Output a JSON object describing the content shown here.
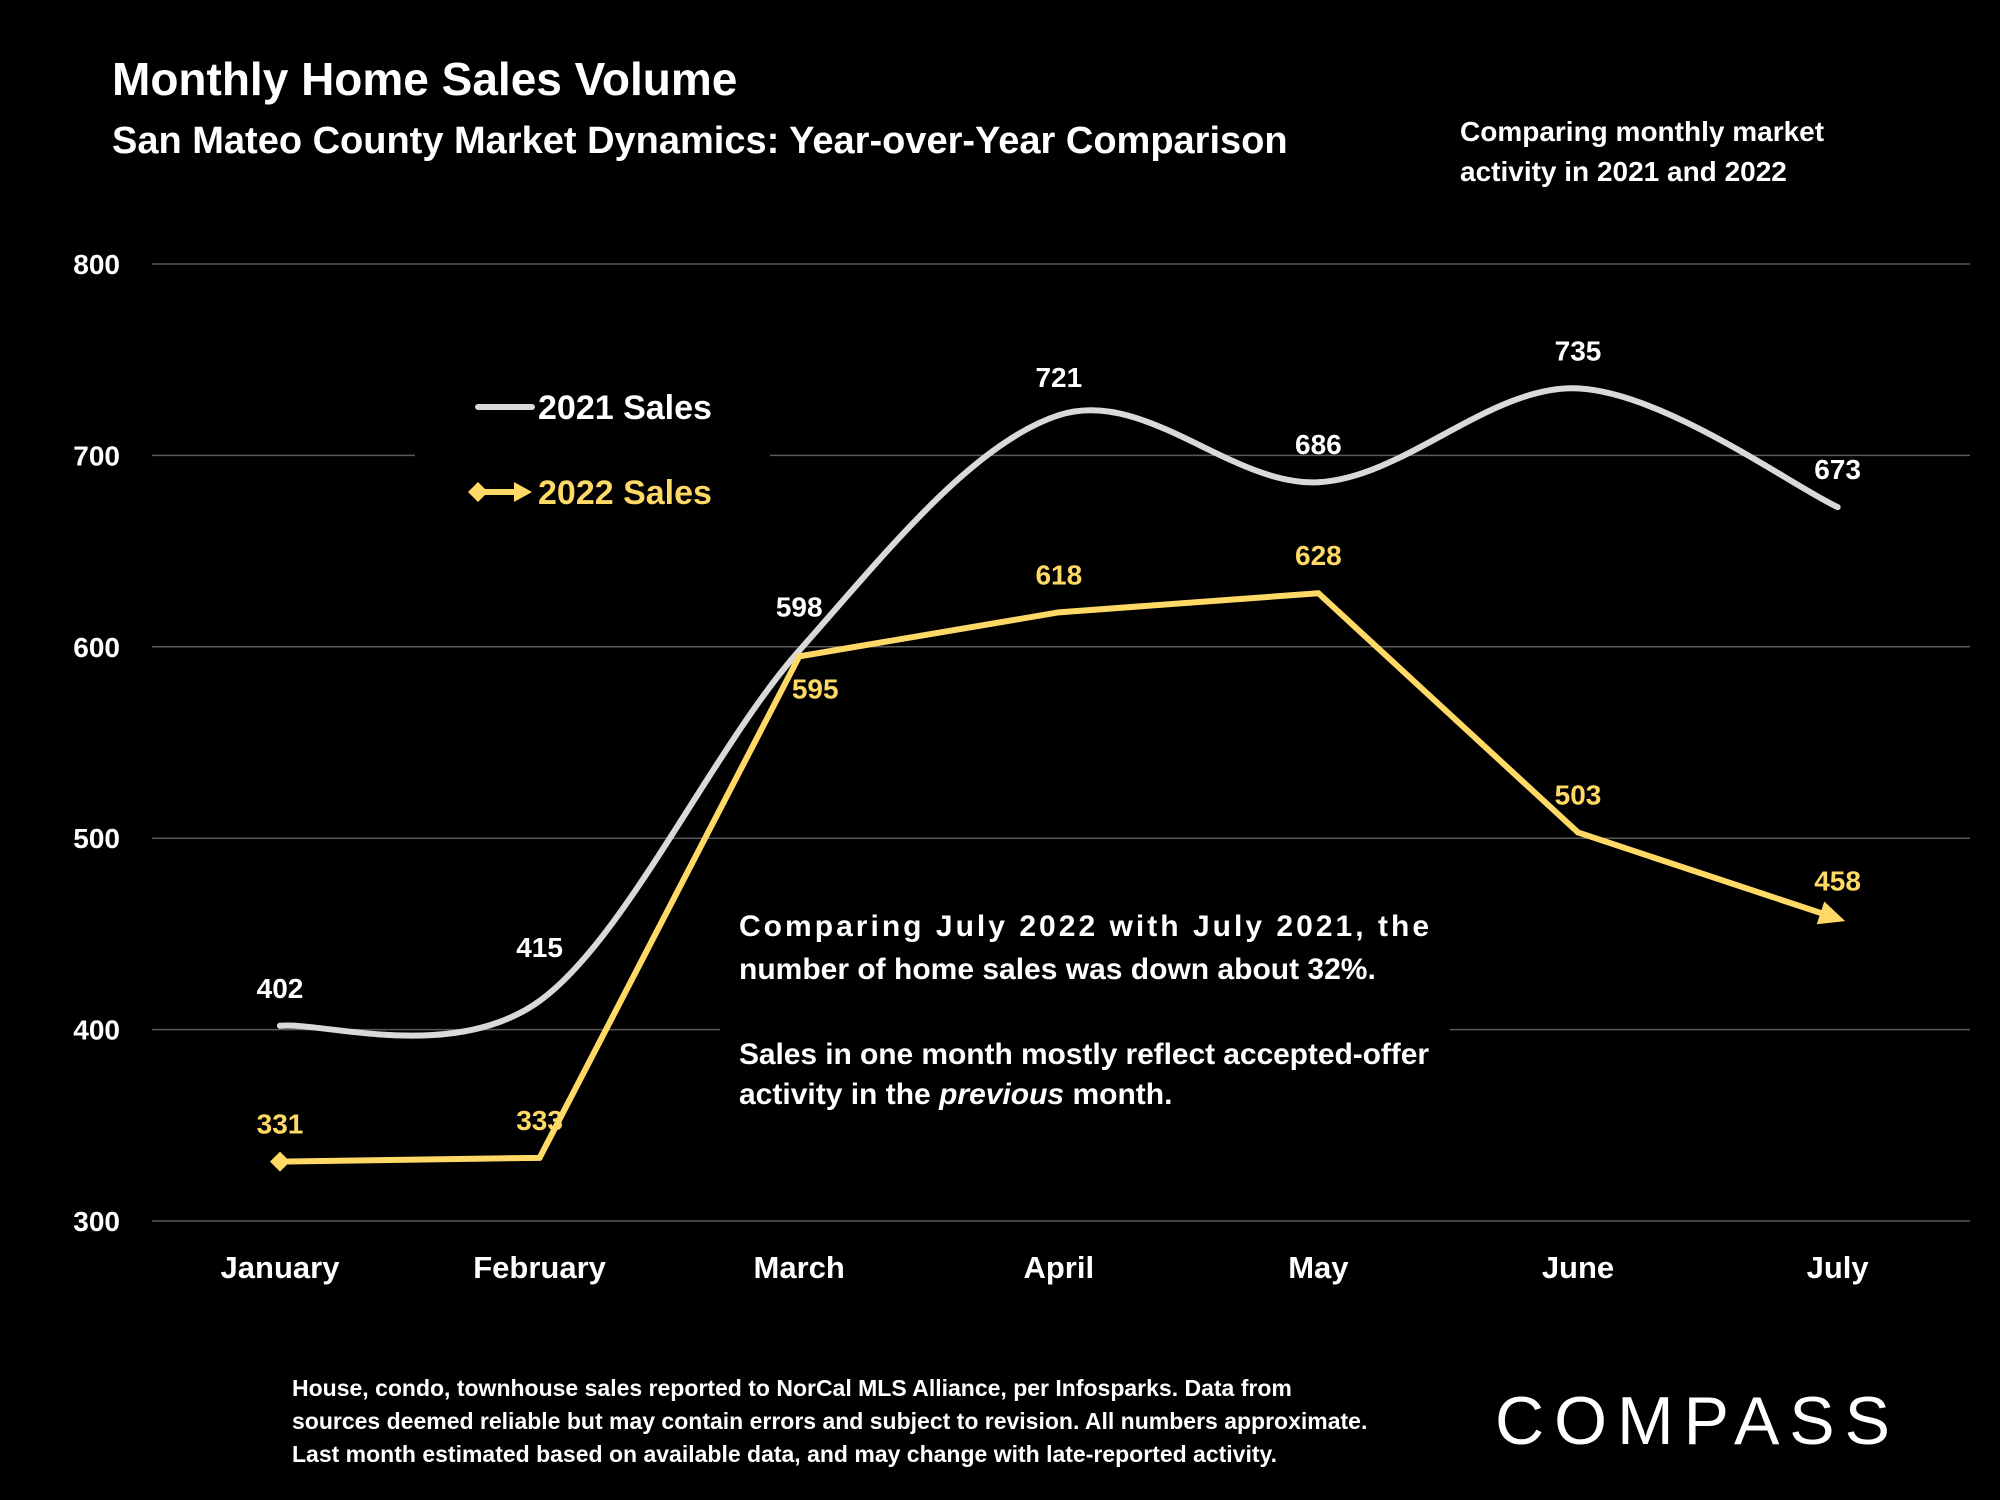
{
  "header": {
    "title": "Monthly Home Sales Volume",
    "subtitle": "San Mateo County Market Dynamics: Year-over-Year Comparison",
    "side_note_lines": [
      "Comparing monthly market",
      "activity in 2021 and 2022"
    ]
  },
  "annotation": {
    "p1_lines": [
      "Comparing July 2022 with July 2021, the",
      "number of home sales was down about 32%."
    ],
    "p2_line1": "Sales in one month mostly reflect accepted-offer",
    "p2_line2_pre": "activity in the ",
    "p2_line2_em": "previous",
    "p2_line2_post": " month."
  },
  "footnote": {
    "lines": [
      "House, condo, townhouse sales reported to NorCal MLS Alliance, per Infosparks. Data from",
      "sources deemed reliable but may contain errors and subject to revision. All numbers approximate.",
      "Last month estimated based on available data, and may change with late-reported activity."
    ]
  },
  "logo": {
    "text": "COMPASS"
  },
  "colors": {
    "background": "#000000",
    "series_2021": "#d9d9d9",
    "series_2022": "#ffd966",
    "grid": "#595959",
    "text": "#ffffff"
  },
  "chart_data": {
    "type": "line",
    "categories": [
      "January",
      "February",
      "March",
      "April",
      "May",
      "June",
      "July"
    ],
    "ylim": [
      300,
      800
    ],
    "yticks": [
      800,
      700,
      600,
      500,
      400,
      300
    ],
    "grid": true,
    "legend_position": "top-left",
    "series": [
      {
        "name": "2021 Sales",
        "values": [
          402,
          415,
          598,
          721,
          686,
          735,
          673
        ],
        "color": "#d9d9d9",
        "style": "smooth"
      },
      {
        "name": "2022 Sales",
        "values": [
          331,
          333,
          595,
          618,
          628,
          503,
          458
        ],
        "color": "#ffd966",
        "style": "straight"
      }
    ]
  }
}
